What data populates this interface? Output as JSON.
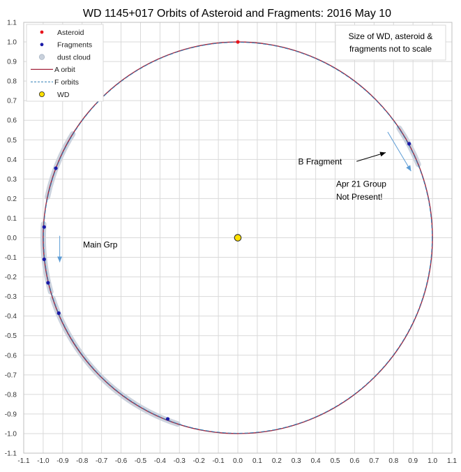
{
  "chart_data": {
    "type": "scatter",
    "title": "WD 1145+017 Orbits of Asteroid and Fragments: 2016 May 10",
    "xlim": [
      -1.1,
      1.1
    ],
    "ylim": [
      -1.1,
      1.1
    ],
    "x_ticks": [
      "-1.1",
      "-1.0",
      "-0.9",
      "-0.8",
      "-0.7",
      "-0.6",
      "-0.5",
      "-0.4",
      "-0.3",
      "-0.2",
      "-0.1",
      "0.0",
      "0.1",
      "0.2",
      "0.3",
      "0.4",
      "0.5",
      "0.6",
      "0.7",
      "0.8",
      "0.9",
      "1.0",
      "1.1"
    ],
    "y_ticks": [
      "1.1",
      "1.0",
      "0.9",
      "0.8",
      "0.7",
      "0.6",
      "0.5",
      "0.4",
      "0.3",
      "0.2",
      "0.1",
      "0.0",
      "-0.1",
      "-0.2",
      "-0.3",
      "-0.4",
      "-0.5",
      "-0.6",
      "-0.7",
      "-0.8",
      "-0.9",
      "-1.0",
      "-1.1"
    ],
    "grid": true,
    "legend_position": "top-left",
    "legend": [
      {
        "label": "Asteroid",
        "kind": "dot",
        "color": "#e8141c"
      },
      {
        "label": "Fragments",
        "kind": "dot",
        "color": "#1a1aa8"
      },
      {
        "label": "dust cloud",
        "kind": "dot",
        "color": "#c9d1dc"
      },
      {
        "label": "A orbit",
        "kind": "line",
        "color": "#a3243c"
      },
      {
        "label": "F orbits",
        "kind": "dash",
        "color": "#2f7fb5"
      },
      {
        "label": "WD",
        "kind": "wd",
        "color": "#ffe000"
      }
    ],
    "series": [
      {
        "name": "Asteroid",
        "points": [
          [
            0.0,
            1.0
          ]
        ],
        "color": "#e8141c"
      },
      {
        "name": "Fragments",
        "points": [
          [
            0.88,
            0.48
          ],
          [
            -0.935,
            0.355
          ],
          [
            -0.995,
            0.055
          ],
          [
            -0.995,
            -0.11
          ],
          [
            -0.975,
            -0.23
          ],
          [
            -0.92,
            -0.385
          ],
          [
            -0.36,
            -0.925
          ]
        ],
        "color": "#1a1aa8"
      },
      {
        "name": "WD",
        "points": [
          [
            0.0,
            0.0
          ]
        ],
        "color": "#ffe000"
      }
    ],
    "dust_clouds": [
      {
        "from_deg": 176,
        "to_deg": 196
      },
      {
        "from_deg": 198,
        "to_deg": 212
      },
      {
        "from_deg": 212,
        "to_deg": 238
      },
      {
        "from_deg": 148,
        "to_deg": 168
      },
      {
        "from_deg": 234,
        "to_deg": 252
      },
      {
        "from_deg": 22,
        "to_deg": 34
      }
    ],
    "orbit": {
      "radius": 1.0,
      "a_color": "#a3243c",
      "f_color": "#2f7fb5"
    },
    "arrows": [
      {
        "from": [
          0.77,
          0.54
        ],
        "to": [
          0.89,
          0.34
        ],
        "color": "#5b9bd5"
      },
      {
        "from": [
          -0.915,
          0.01
        ],
        "to": [
          -0.915,
          -0.125
        ],
        "color": "#5b9bd5"
      },
      {
        "from": [
          0.61,
          0.39
        ],
        "to": [
          0.76,
          0.435
        ],
        "color": "#000000"
      }
    ],
    "annotations": [
      {
        "text": "B Fragment",
        "x": 0.31,
        "y": 0.375
      },
      {
        "text": "Apr 21 Group",
        "x": 0.505,
        "y": 0.26
      },
      {
        "text": "Not Present!",
        "x": 0.505,
        "y": 0.195
      },
      {
        "text": "Main Grp",
        "x": -0.795,
        "y": -0.05
      }
    ],
    "note": [
      "Size of WD, asteroid &",
      "fragments not to scale"
    ]
  }
}
